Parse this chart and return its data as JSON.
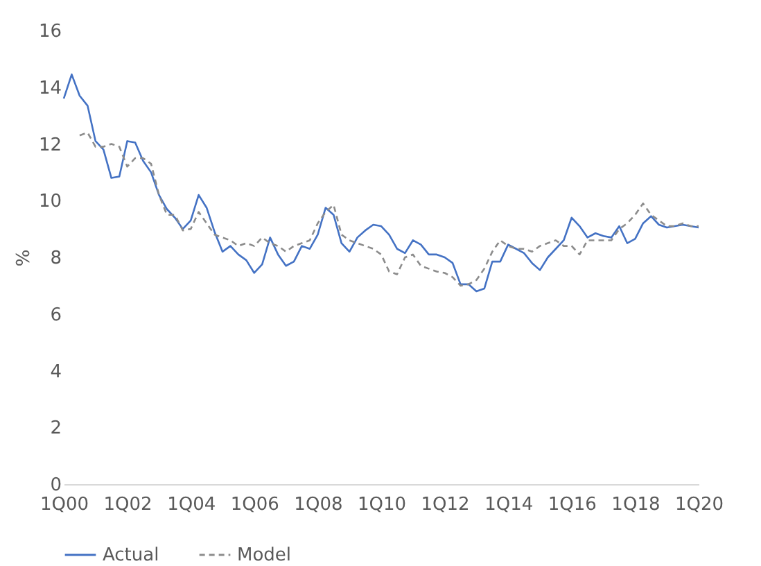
{
  "chart_data": {
    "type": "line",
    "ylabel": "%",
    "ylim": [
      0,
      16
    ],
    "yticks": [
      0,
      2,
      4,
      6,
      8,
      10,
      12,
      14,
      16
    ],
    "grid": false,
    "legend": "bottom",
    "categories": [
      "1Q00",
      null,
      null,
      null,
      null,
      null,
      null,
      null,
      "1Q02",
      null,
      null,
      null,
      null,
      null,
      null,
      null,
      "1Q04",
      null,
      null,
      null,
      null,
      null,
      null,
      null,
      "1Q06",
      null,
      null,
      null,
      null,
      null,
      null,
      null,
      "1Q08",
      null,
      null,
      null,
      null,
      null,
      null,
      null,
      "1Q10",
      null,
      null,
      null,
      null,
      null,
      null,
      null,
      "1Q12",
      null,
      null,
      null,
      null,
      null,
      null,
      null,
      "1Q14",
      null,
      null,
      null,
      null,
      null,
      null,
      null,
      "1Q16",
      null,
      null,
      null,
      null,
      null,
      null,
      null,
      "1Q18",
      null,
      null,
      null,
      null,
      null,
      null,
      null,
      "1Q20"
    ],
    "series": [
      {
        "name": "Actual",
        "color": "#4472c4",
        "line_style": "solid",
        "values": [
          13.6,
          14.45,
          13.7,
          13.35,
          12.1,
          11.8,
          10.8,
          10.85,
          12.1,
          12.05,
          11.4,
          11.0,
          10.2,
          9.7,
          9.4,
          9.0,
          9.3,
          10.2,
          9.75,
          8.9,
          8.2,
          8.4,
          8.1,
          7.9,
          7.45,
          7.75,
          8.7,
          8.1,
          7.7,
          7.85,
          8.4,
          8.3,
          8.8,
          9.75,
          9.5,
          8.5,
          8.2,
          8.7,
          8.95,
          9.15,
          9.1,
          8.8,
          8.3,
          8.15,
          8.6,
          8.45,
          8.1,
          8.1,
          8.0,
          7.8,
          7.05,
          7.05,
          6.8,
          6.9,
          7.85,
          7.85,
          8.45,
          8.3,
          8.15,
          7.8,
          7.55,
          8.0,
          8.3,
          8.6,
          9.4,
          9.1,
          8.7,
          8.85,
          8.75,
          8.7,
          9.1,
          8.5,
          8.65,
          9.2,
          9.45,
          9.15,
          9.05,
          9.1,
          9.15,
          9.1,
          9.05
        ]
      },
      {
        "name": "Model",
        "color": "#8c8c8c",
        "line_style": "dashed",
        "values": [
          null,
          null,
          12.3,
          12.4,
          11.9,
          11.9,
          12.0,
          11.9,
          11.2,
          11.5,
          11.5,
          11.3,
          10.2,
          9.5,
          9.5,
          8.95,
          9.0,
          9.6,
          9.2,
          8.8,
          8.7,
          8.6,
          8.4,
          8.5,
          8.4,
          8.7,
          8.5,
          8.4,
          8.2,
          8.4,
          8.5,
          8.6,
          9.2,
          9.6,
          9.85,
          8.8,
          8.6,
          8.5,
          8.4,
          8.3,
          8.1,
          7.5,
          7.4,
          8.0,
          8.1,
          7.7,
          7.6,
          7.5,
          7.45,
          7.3,
          7.0,
          7.05,
          7.2,
          7.6,
          8.2,
          8.6,
          8.4,
          8.3,
          8.3,
          8.2,
          8.4,
          8.5,
          8.6,
          8.4,
          8.4,
          8.1,
          8.6,
          8.6,
          8.6,
          8.6,
          9.0,
          9.2,
          9.5,
          9.9,
          9.5,
          9.3,
          9.1,
          9.1,
          9.2,
          9.1,
          9.1
        ]
      }
    ]
  }
}
